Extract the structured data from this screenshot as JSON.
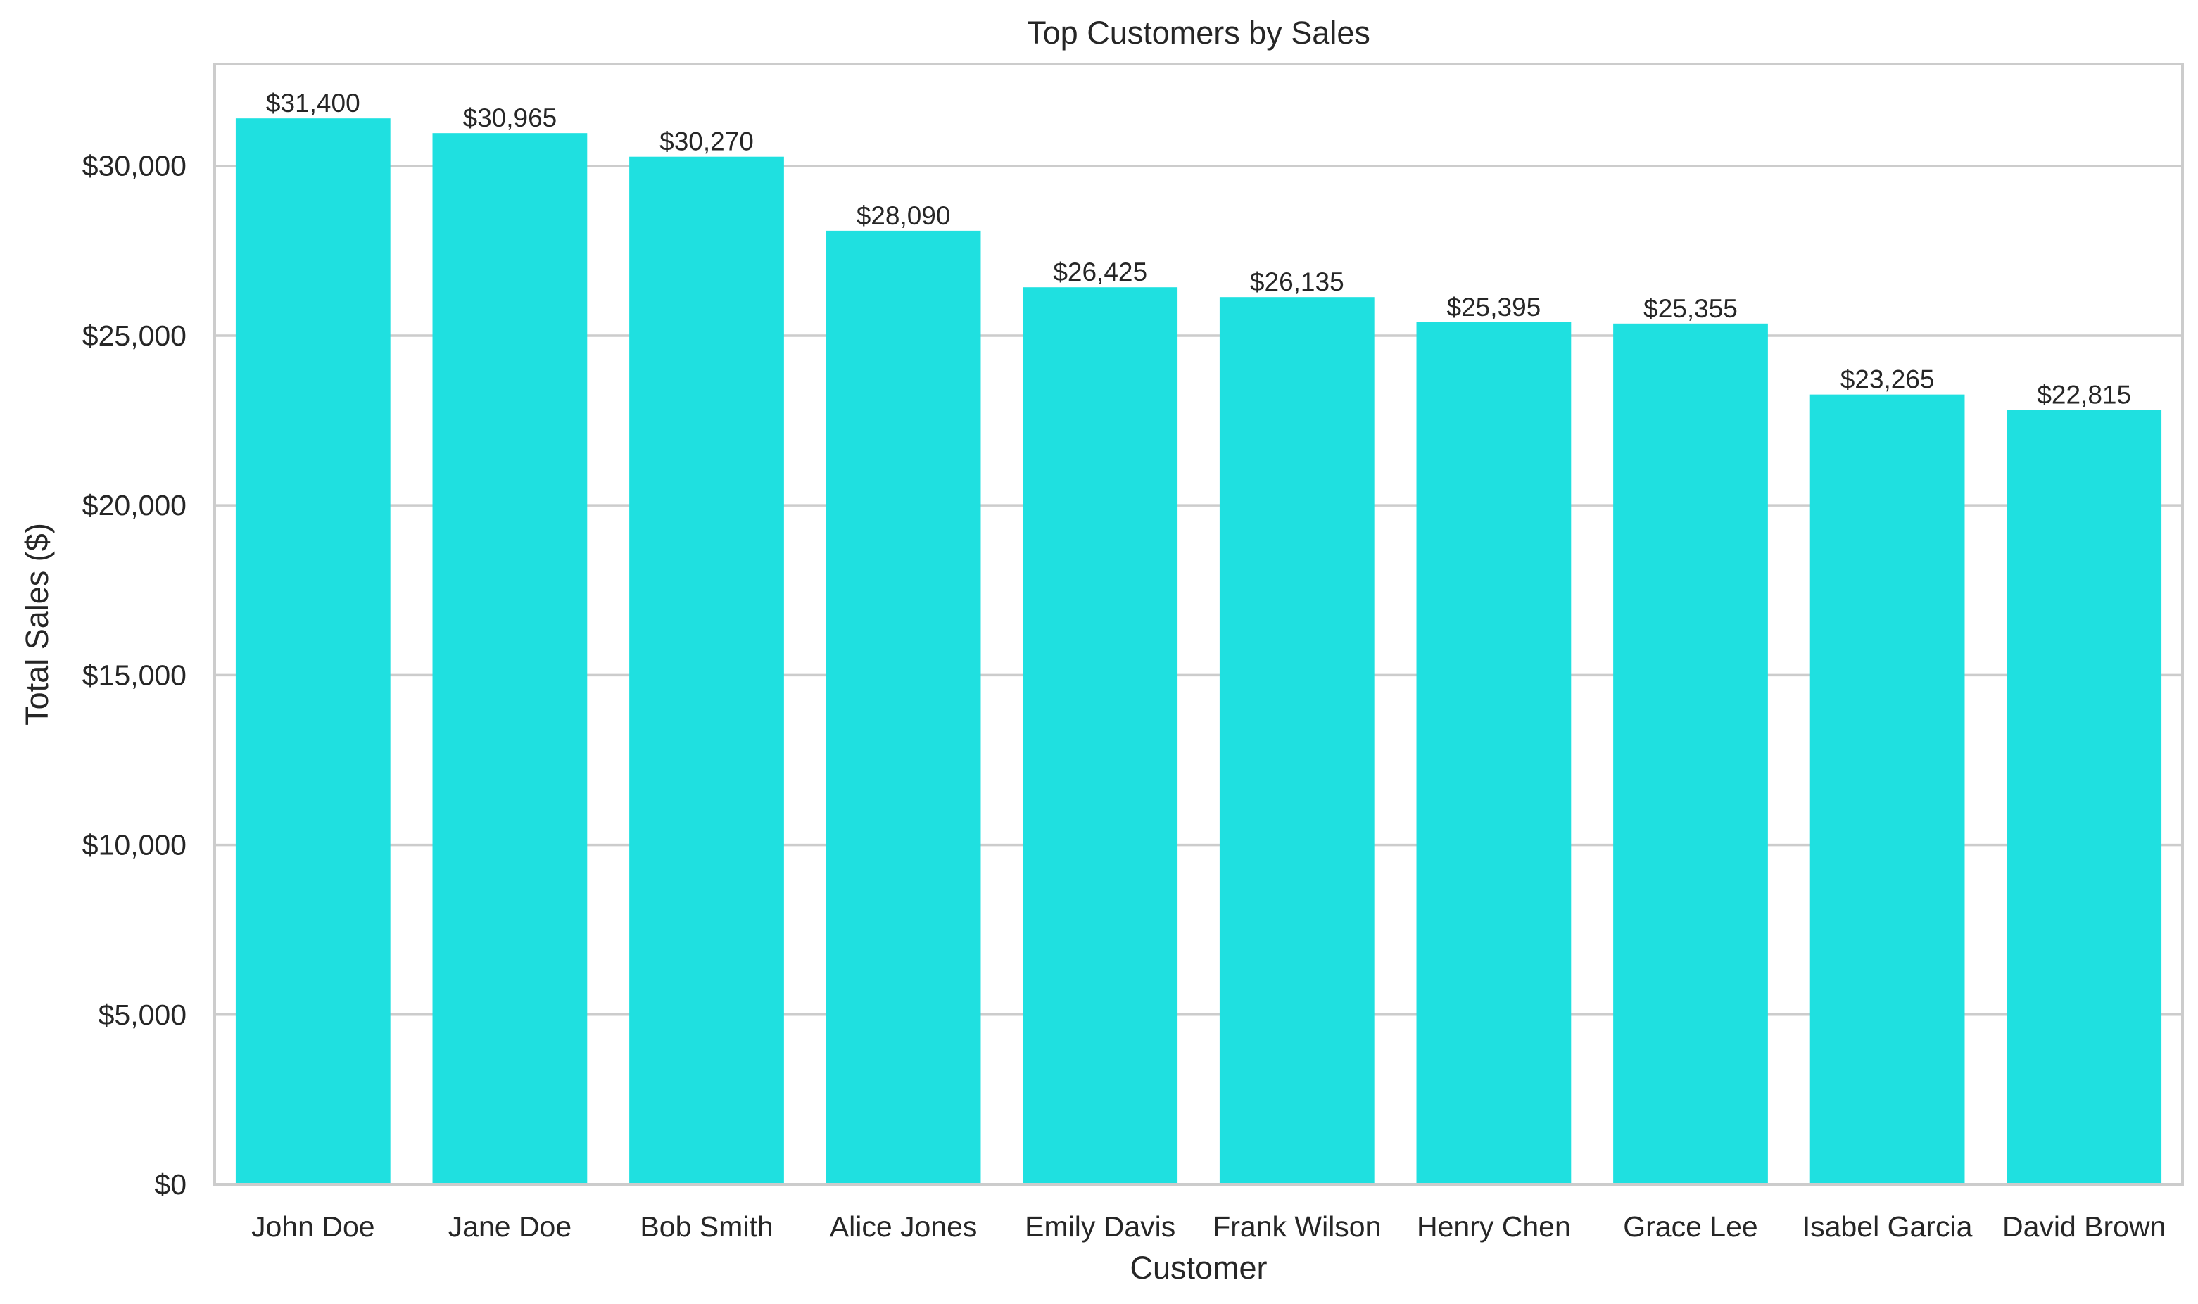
{
  "chart_data": {
    "type": "bar",
    "title": "Top Customers by Sales",
    "xlabel": "Customer",
    "ylabel": "Total Sales ($)",
    "categories": [
      "John Doe",
      "Jane Doe",
      "Bob Smith",
      "Alice Jones",
      "Emily Davis",
      "Frank Wilson",
      "Henry Chen",
      "Grace Lee",
      "Isabel Garcia",
      "David Brown"
    ],
    "values": [
      31400,
      30965,
      30270,
      28090,
      26425,
      26135,
      25395,
      25355,
      23265,
      22815
    ],
    "data_labels": [
      "$31,400",
      "$30,965",
      "$30,270",
      "$28,090",
      "$26,425",
      "$26,135",
      "$25,395",
      "$25,355",
      "$23,265",
      "$22,815"
    ],
    "ylim": [
      0,
      33000
    ],
    "yticks": [
      0,
      5000,
      10000,
      15000,
      20000,
      25000,
      30000
    ],
    "ytick_labels": [
      "$0",
      "$5,000",
      "$10,000",
      "$15,000",
      "$20,000",
      "$25,000",
      "$30,000"
    ],
    "grid": "horizontal",
    "bar_color": "#1fe0e0",
    "legend": "none"
  }
}
